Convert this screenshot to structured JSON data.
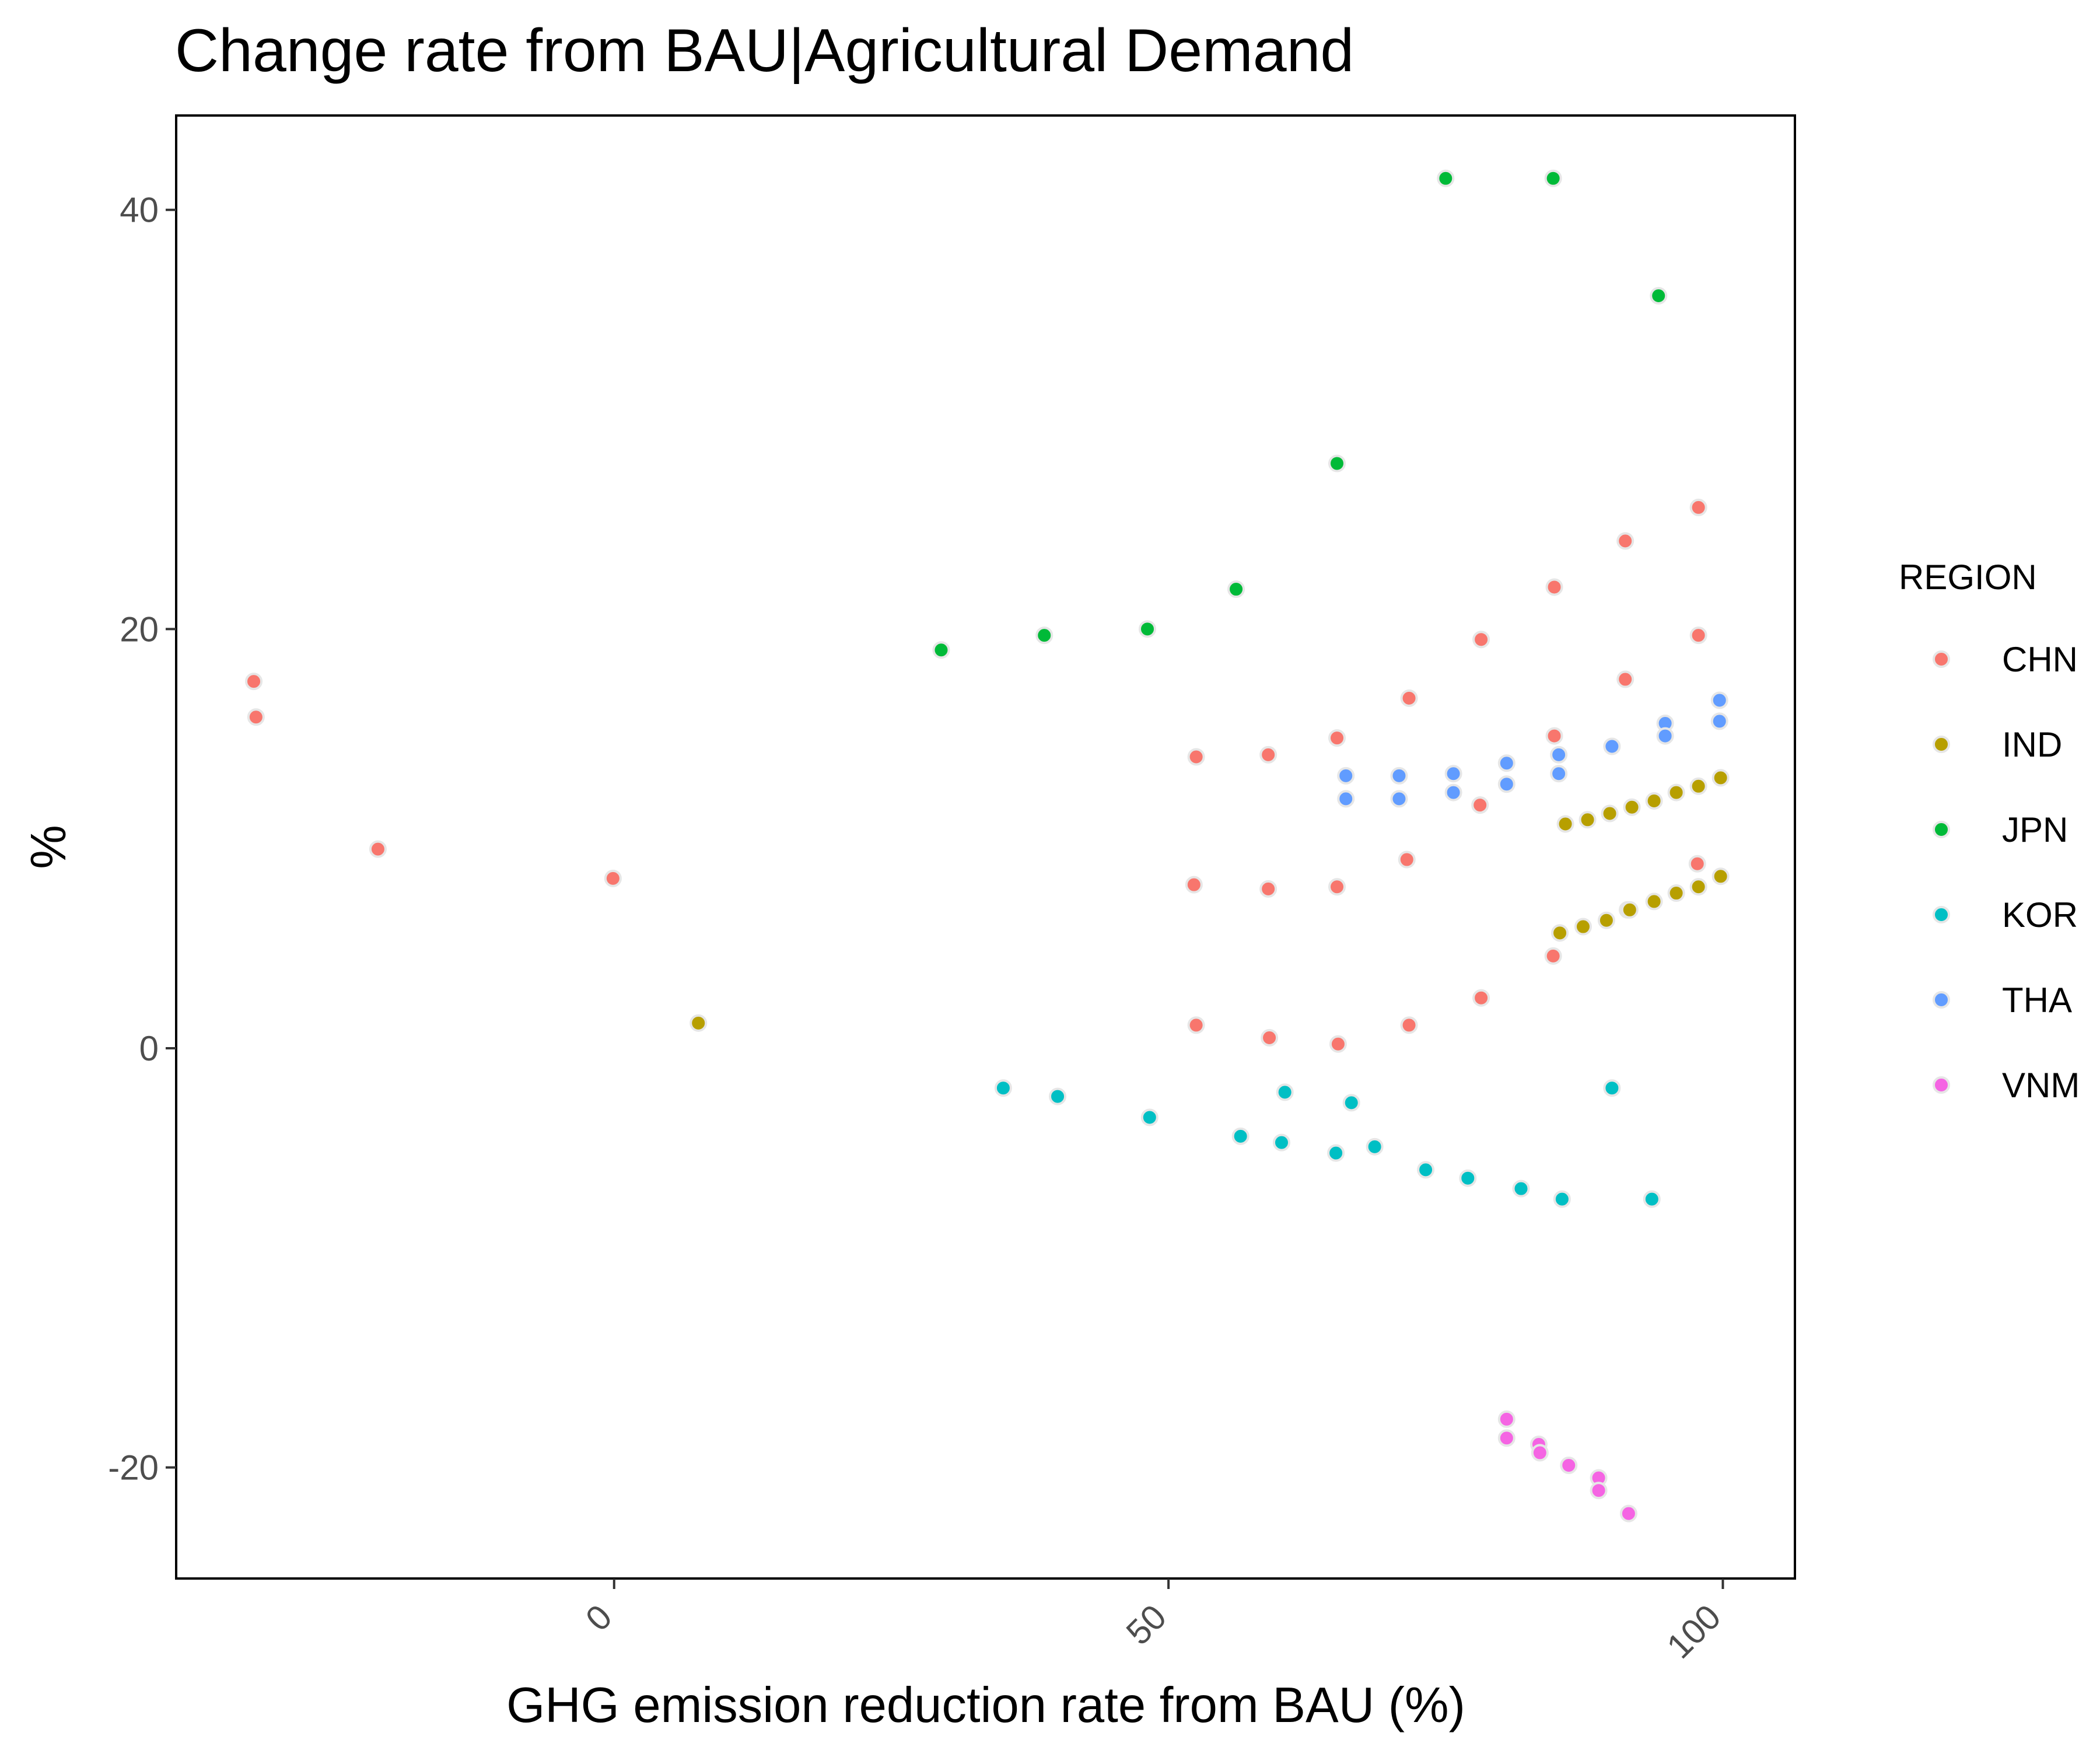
{
  "chart_data": {
    "type": "scatter",
    "title": "Change rate from BAU|Agricultural Demand",
    "xlabel": "GHG emission reduction rate from BAU (%)",
    "ylabel": "%",
    "xlim": [
      -39.5,
      106.5
    ],
    "ylim": [
      -25.3,
      44.5
    ],
    "x_ticks": [
      0,
      50,
      100
    ],
    "y_ticks": [
      -20,
      0,
      20,
      40
    ],
    "x_tick_labels": [
      "0",
      "50",
      "100"
    ],
    "y_tick_labels": [
      "-20",
      "0",
      "20",
      "40"
    ],
    "grid": false,
    "legend": {
      "title": "REGION",
      "position": "right"
    },
    "series": [
      {
        "name": "CHN",
        "color": "#F8766D",
        "points": [
          [
            -32.5,
            17.5
          ],
          [
            -32.3,
            15.8
          ],
          [
            -21.3,
            9.5
          ],
          [
            -0.1,
            8.1
          ],
          [
            52.5,
            13.9
          ],
          [
            52.3,
            7.8
          ],
          [
            52.5,
            1.1
          ],
          [
            59.0,
            14.0
          ],
          [
            59.0,
            7.6
          ],
          [
            59.1,
            0.5
          ],
          [
            65.2,
            14.8
          ],
          [
            65.2,
            7.7
          ],
          [
            65.3,
            0.2
          ],
          [
            71.7,
            16.7
          ],
          [
            71.5,
            9.0
          ],
          [
            71.7,
            1.1
          ],
          [
            78.2,
            19.5
          ],
          [
            78.1,
            11.6
          ],
          [
            78.2,
            2.4
          ],
          [
            84.8,
            22.0
          ],
          [
            84.8,
            14.9
          ],
          [
            84.7,
            4.4
          ],
          [
            91.2,
            24.2
          ],
          [
            91.2,
            17.6
          ],
          [
            91.4,
            6.6
          ],
          [
            97.8,
            25.8
          ],
          [
            97.8,
            19.7
          ],
          [
            97.7,
            8.8
          ]
        ]
      },
      {
        "name": "IND",
        "color": "#B79F00",
        "points": [
          [
            7.6,
            1.2
          ],
          [
            85.3,
            5.5
          ],
          [
            87.4,
            5.8
          ],
          [
            89.5,
            6.1
          ],
          [
            91.6,
            6.6
          ],
          [
            93.8,
            7.0
          ],
          [
            95.8,
            7.4
          ],
          [
            97.8,
            7.7
          ],
          [
            99.8,
            8.2
          ],
          [
            85.8,
            10.7
          ],
          [
            87.8,
            10.9
          ],
          [
            89.8,
            11.2
          ],
          [
            91.8,
            11.5
          ],
          [
            93.8,
            11.8
          ],
          [
            95.8,
            12.2
          ],
          [
            97.8,
            12.5
          ],
          [
            99.8,
            12.9
          ]
        ]
      },
      {
        "name": "JPN",
        "color": "#00BA38",
        "points": [
          [
            29.5,
            19.0
          ],
          [
            38.8,
            19.7
          ],
          [
            48.1,
            20.0
          ],
          [
            56.1,
            21.9
          ],
          [
            65.2,
            27.9
          ],
          [
            75.0,
            41.5
          ],
          [
            84.7,
            41.5
          ],
          [
            94.2,
            35.9
          ]
        ]
      },
      {
        "name": "KOR",
        "color": "#00BFC4",
        "points": [
          [
            35.1,
            -1.9
          ],
          [
            40.0,
            -2.3
          ],
          [
            48.3,
            -3.3
          ],
          [
            56.5,
            -4.2
          ],
          [
            60.2,
            -4.5
          ],
          [
            60.5,
            -2.1
          ],
          [
            65.1,
            -5.0
          ],
          [
            66.5,
            -2.6
          ],
          [
            68.6,
            -4.7
          ],
          [
            73.2,
            -5.8
          ],
          [
            77.0,
            -6.2
          ],
          [
            81.8,
            -6.7
          ],
          [
            85.5,
            -7.2
          ],
          [
            90.0,
            -1.9
          ],
          [
            93.6,
            -7.2
          ]
        ]
      },
      {
        "name": "THA",
        "color": "#619CFF",
        "points": [
          [
            66.0,
            13.0
          ],
          [
            66.0,
            11.9
          ],
          [
            70.8,
            13.0
          ],
          [
            70.8,
            11.9
          ],
          [
            75.7,
            13.1
          ],
          [
            75.7,
            12.2
          ],
          [
            80.5,
            13.6
          ],
          [
            80.5,
            12.6
          ],
          [
            85.2,
            14.0
          ],
          [
            85.2,
            13.1
          ],
          [
            90.0,
            14.4
          ],
          [
            94.8,
            15.5
          ],
          [
            94.8,
            14.9
          ],
          [
            99.7,
            16.6
          ],
          [
            99.7,
            15.6
          ]
        ]
      },
      {
        "name": "VNM",
        "color": "#F564E3",
        "points": [
          [
            80.5,
            -17.7
          ],
          [
            80.5,
            -18.6
          ],
          [
            83.4,
            -18.9
          ],
          [
            83.5,
            -19.3
          ],
          [
            86.1,
            -19.9
          ],
          [
            88.8,
            -20.5
          ],
          [
            88.8,
            -21.1
          ],
          [
            91.5,
            -22.2
          ]
        ]
      }
    ]
  }
}
